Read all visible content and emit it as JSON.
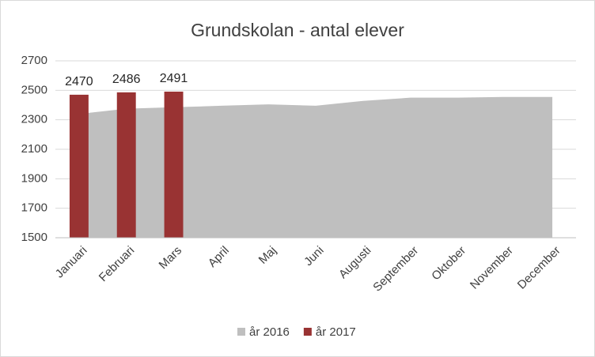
{
  "chart_data": {
    "type": "combo",
    "title": "Grundskolan - antal elever",
    "categories": [
      "Januari",
      "Februari",
      "Mars",
      "April",
      "Maj",
      "Juni",
      "Augusti",
      "September",
      "Oktober",
      "November",
      "December"
    ],
    "series": [
      {
        "name": "år 2016",
        "type": "area",
        "color": "#bfbfbf",
        "values": [
          2340,
          2375,
          2385,
          2395,
          2405,
          2395,
          2428,
          2450,
          2450,
          2455,
          2455
        ]
      },
      {
        "name": "år 2017",
        "type": "bar",
        "color": "#993333",
        "values": [
          2470,
          2486,
          2491,
          null,
          null,
          null,
          null,
          null,
          null,
          null,
          null
        ]
      }
    ],
    "ylim": [
      1500,
      2700
    ],
    "yticks": [
      1500,
      1700,
      1900,
      2100,
      2300,
      2500,
      2700
    ],
    "grid": true,
    "legend": "bottom"
  }
}
